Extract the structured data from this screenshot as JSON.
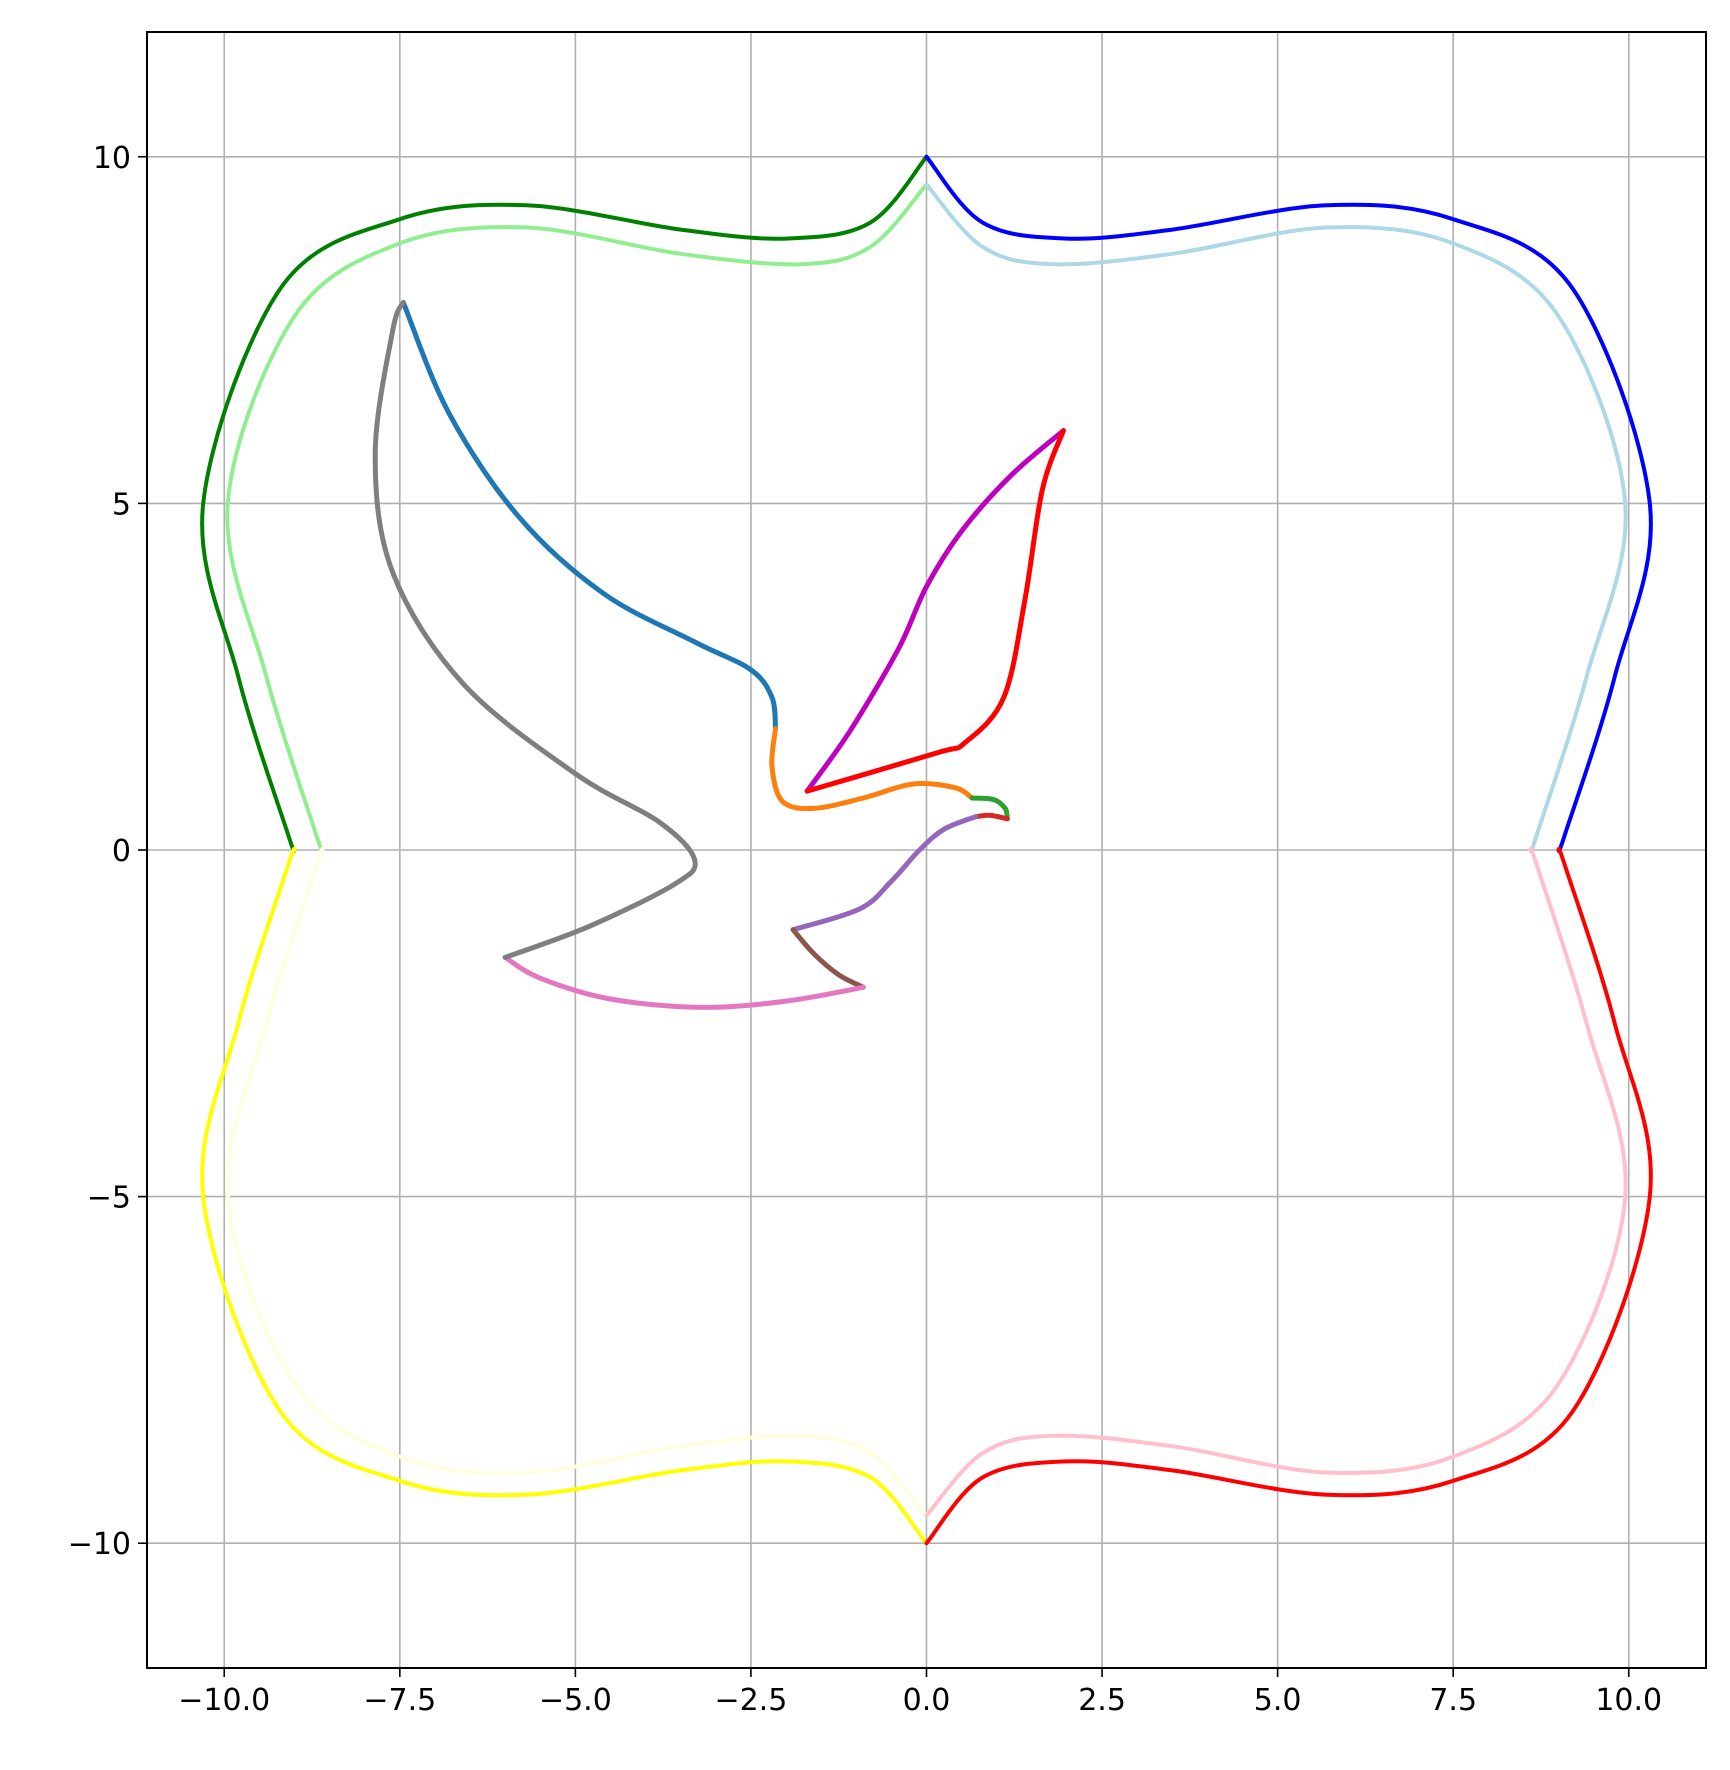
{
  "chart_data": {
    "type": "line",
    "title": "",
    "xlabel": "",
    "ylabel": "",
    "xlim": [
      -11.1,
      11.1
    ],
    "ylim": [
      -11.8,
      11.8
    ],
    "grid": true,
    "legend": "none",
    "x_ticks": [
      -10,
      -7.5,
      -5,
      -2.5,
      0,
      2.5,
      5,
      7.5,
      10
    ],
    "x_tick_labels": [
      "−10.0",
      "−7.5",
      "−5.0",
      "−2.5",
      "0.0",
      "2.5",
      "5.0",
      "7.5",
      "10.0"
    ],
    "y_ticks": [
      10,
      5,
      0,
      -5,
      -10
    ],
    "y_tick_labels": [
      "10",
      "5",
      "0",
      "−5",
      "−10"
    ],
    "series": [
      {
        "color": "#008000",
        "points": [
          [
            0,
            10
          ],
          [
            -0.8,
            9.05
          ],
          [
            -2,
            8.82
          ],
          [
            -3.5,
            8.95
          ],
          [
            -5.7,
            9.3
          ],
          [
            -7.5,
            9.1
          ],
          [
            -9.2,
            8.1
          ],
          [
            -10.3,
            5
          ],
          [
            -9.8,
            2.5
          ],
          [
            -9.1,
            0.25
          ],
          [
            -9,
            0
          ]
        ]
      },
      {
        "color": "#0000ff",
        "points": [
          [
            0,
            10
          ],
          [
            0.8,
            9.05
          ],
          [
            2,
            8.82
          ],
          [
            3.5,
            8.95
          ],
          [
            5.7,
            9.3
          ],
          [
            7.5,
            9.1
          ],
          [
            9.2,
            8.1
          ],
          [
            10.3,
            5
          ],
          [
            9.8,
            2.5
          ],
          [
            9.1,
            0.25
          ],
          [
            9,
            0
          ]
        ]
      },
      {
        "color": "#ffff00",
        "points": [
          [
            0,
            -10
          ],
          [
            -0.8,
            -9.05
          ],
          [
            -2,
            -8.82
          ],
          [
            -3.5,
            -8.95
          ],
          [
            -5.7,
            -9.3
          ],
          [
            -7.5,
            -9.1
          ],
          [
            -9.2,
            -8.1
          ],
          [
            -10.3,
            -5
          ],
          [
            -9.8,
            -2.5
          ],
          [
            -9.1,
            -0.25
          ],
          [
            -9,
            0
          ]
        ]
      },
      {
        "color": "#ff0000",
        "points": [
          [
            0,
            -10
          ],
          [
            0.8,
            -9.05
          ],
          [
            2,
            -8.82
          ],
          [
            3.5,
            -8.95
          ],
          [
            5.7,
            -9.3
          ],
          [
            7.5,
            -9.1
          ],
          [
            9.2,
            -8.1
          ],
          [
            10.3,
            -5
          ],
          [
            9.8,
            -2.5
          ],
          [
            9.1,
            -0.25
          ],
          [
            9,
            0
          ]
        ]
      },
      {
        "color": "#90ee90",
        "points": [
          [
            0,
            9.6
          ],
          [
            -0.8,
            8.7
          ],
          [
            -1.8,
            8.45
          ],
          [
            -3.5,
            8.6
          ],
          [
            -5.7,
            8.98
          ],
          [
            -7.5,
            8.75
          ],
          [
            -9,
            7.7
          ],
          [
            -9.95,
            5
          ],
          [
            -9.4,
            2.5
          ],
          [
            -8.7,
            0.25
          ],
          [
            -8.6,
            0
          ]
        ]
      },
      {
        "color": "#add8e6",
        "points": [
          [
            0,
            9.6
          ],
          [
            0.8,
            8.7
          ],
          [
            1.8,
            8.45
          ],
          [
            3.5,
            8.6
          ],
          [
            5.7,
            8.98
          ],
          [
            7.5,
            8.75
          ],
          [
            9,
            7.7
          ],
          [
            9.95,
            5
          ],
          [
            9.4,
            2.5
          ],
          [
            8.7,
            0.25
          ],
          [
            8.6,
            0
          ]
        ]
      },
      {
        "color": "#ffffe0",
        "points": [
          [
            0,
            -9.6
          ],
          [
            -0.8,
            -8.7
          ],
          [
            -1.8,
            -8.45
          ],
          [
            -3.5,
            -8.6
          ],
          [
            -5.7,
            -8.98
          ],
          [
            -7.5,
            -8.75
          ],
          [
            -9,
            -7.7
          ],
          [
            -9.95,
            -5
          ],
          [
            -9.4,
            -2.5
          ],
          [
            -8.7,
            -0.25
          ],
          [
            -8.6,
            0
          ]
        ]
      },
      {
        "color": "#ffc0cb",
        "points": [
          [
            0,
            -9.6
          ],
          [
            0.8,
            -8.7
          ],
          [
            1.8,
            -8.45
          ],
          [
            3.5,
            -8.6
          ],
          [
            5.7,
            -8.98
          ],
          [
            7.5,
            -8.75
          ],
          [
            9,
            -7.7
          ],
          [
            9.95,
            -5
          ],
          [
            9.4,
            -2.5
          ],
          [
            8.7,
            -0.25
          ],
          [
            8.6,
            0
          ]
        ]
      },
      {
        "color": "#1f77b4",
        "points": [
          [
            -7.45,
            7.9
          ],
          [
            -6.8,
            6.3
          ],
          [
            -5.8,
            4.8
          ],
          [
            -4.6,
            3.7
          ],
          [
            -3.3,
            3
          ],
          [
            -2.5,
            2.6
          ],
          [
            -2.2,
            2.2
          ],
          [
            -2.15,
            1.75
          ]
        ]
      },
      {
        "color": "#ff7f0e",
        "points": [
          [
            -2.15,
            1.75
          ],
          [
            -2.2,
            1.2
          ],
          [
            -2.05,
            0.7
          ],
          [
            -1.6,
            0.6
          ],
          [
            -0.9,
            0.75
          ],
          [
            -0.2,
            0.95
          ],
          [
            0.4,
            0.9
          ],
          [
            0.65,
            0.75
          ]
        ]
      },
      {
        "color": "#2ca02c",
        "points": [
          [
            0.65,
            0.75
          ],
          [
            0.95,
            0.73
          ],
          [
            1.12,
            0.6
          ],
          [
            1.15,
            0.45
          ]
        ]
      },
      {
        "color": "#d62728",
        "points": [
          [
            1.15,
            0.45
          ],
          [
            0.9,
            0.5
          ],
          [
            0.7,
            0.48
          ]
        ]
      },
      {
        "color": "#9467bd",
        "points": [
          [
            0.7,
            0.48
          ],
          [
            0.25,
            0.3
          ],
          [
            -0.1,
            0
          ],
          [
            -0.5,
            -0.45
          ],
          [
            -0.95,
            -0.85
          ],
          [
            -1.9,
            -1.15
          ]
        ]
      },
      {
        "color": "#8c564b",
        "points": [
          [
            -1.9,
            -1.15
          ],
          [
            -1.6,
            -1.5
          ],
          [
            -1.25,
            -1.8
          ],
          [
            -0.9,
            -1.98
          ]
        ]
      },
      {
        "color": "#e377c2",
        "points": [
          [
            -0.9,
            -1.98
          ],
          [
            -2,
            -2.18
          ],
          [
            -3.2,
            -2.27
          ],
          [
            -4.5,
            -2.15
          ],
          [
            -5.5,
            -1.85
          ],
          [
            -6,
            -1.55
          ]
        ]
      },
      {
        "color": "#7f7f7f",
        "points": [
          [
            -6,
            -1.55
          ],
          [
            -4.8,
            -1.1
          ],
          [
            -3.6,
            -0.5
          ],
          [
            -3.3,
            -0.15
          ],
          [
            -3.8,
            0.4
          ],
          [
            -5,
            1.1
          ],
          [
            -6.6,
            2.4
          ],
          [
            -7.6,
            4
          ],
          [
            -7.85,
            5.7
          ],
          [
            -7.6,
            7.5
          ],
          [
            -7.45,
            7.9
          ]
        ]
      },
      {
        "color": "#bf00bf",
        "points": [
          [
            -1.7,
            0.85
          ],
          [
            -1.1,
            1.7
          ],
          [
            -0.4,
            2.9
          ],
          [
            0,
            3.8
          ],
          [
            0.5,
            4.6
          ],
          [
            1.2,
            5.4
          ],
          [
            1.95,
            6.05
          ]
        ]
      },
      {
        "color": "#ff0000",
        "points": [
          [
            1.95,
            6.05
          ],
          [
            1.65,
            5.2
          ],
          [
            1.4,
            3.6
          ],
          [
            1.1,
            2.2
          ],
          [
            0.55,
            1.55
          ],
          [
            0.15,
            1.4
          ],
          [
            -1.7,
            0.85
          ]
        ]
      }
    ]
  }
}
